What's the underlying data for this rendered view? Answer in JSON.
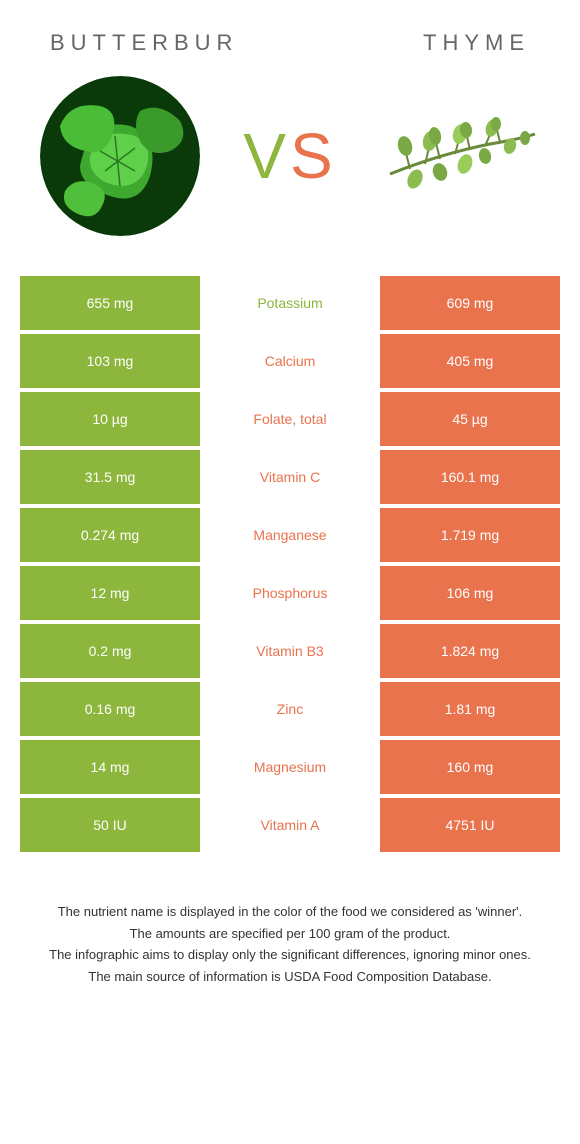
{
  "header": {
    "left_title": "Butterbur",
    "right_title": "Thyme"
  },
  "vs": {
    "v": "V",
    "s": "S"
  },
  "colors": {
    "green": "#8cb63c",
    "orange": "#e8734d",
    "bg": "#ffffff",
    "text": "#666666"
  },
  "rows": [
    {
      "left": "655 mg",
      "label": "Potassium",
      "right": "609 mg",
      "winner": "left"
    },
    {
      "left": "103 mg",
      "label": "Calcium",
      "right": "405 mg",
      "winner": "right"
    },
    {
      "left": "10 µg",
      "label": "Folate, total",
      "right": "45 µg",
      "winner": "right"
    },
    {
      "left": "31.5 mg",
      "label": "Vitamin C",
      "right": "160.1 mg",
      "winner": "right"
    },
    {
      "left": "0.274 mg",
      "label": "Manganese",
      "right": "1.719 mg",
      "winner": "right"
    },
    {
      "left": "12 mg",
      "label": "Phosphorus",
      "right": "106 mg",
      "winner": "right"
    },
    {
      "left": "0.2 mg",
      "label": "Vitamin B3",
      "right": "1.824 mg",
      "winner": "right"
    },
    {
      "left": "0.16 mg",
      "label": "Zinc",
      "right": "1.81 mg",
      "winner": "right"
    },
    {
      "left": "14 mg",
      "label": "Magnesium",
      "right": "160 mg",
      "winner": "right"
    },
    {
      "left": "50 IU",
      "label": "Vitamin A",
      "right": "4751 IU",
      "winner": "right"
    }
  ],
  "footer": {
    "line1": "The nutrient name is displayed in the color of the food we considered as 'winner'.",
    "line2": "The amounts are specified per 100 gram of the product.",
    "line3": "The infographic aims to display only the significant differences, ignoring minor ones.",
    "line4": "The main source of information is USDA Food Composition Database."
  }
}
